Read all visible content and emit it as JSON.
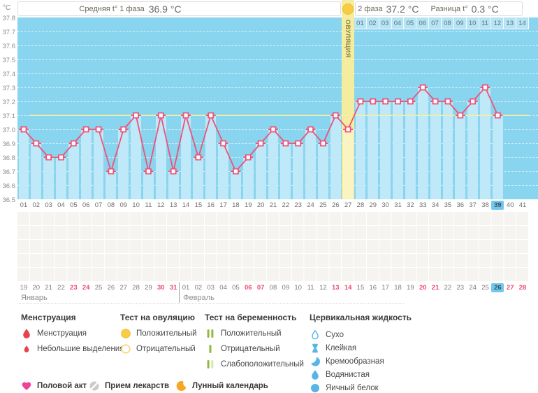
{
  "header": {
    "unit": "°C",
    "phase1_label": "Средняя t° 1 фаза",
    "phase1_value": "36.9 °C",
    "phase2_label": "2 фаза",
    "phase2_value": "37.2 °C",
    "diff_label": "Разница t°",
    "diff_value": "0.3 °C",
    "ovulation_icon": "positive-ovulation-test"
  },
  "chart_data": {
    "type": "line",
    "ylabel": "°C",
    "ylim": [
      36.5,
      37.8
    ],
    "ytick_step": 0.1,
    "cycle_length_days": 41,
    "temperatures_by_day": [
      37.0,
      36.9,
      36.8,
      36.8,
      36.9,
      37.0,
      37.0,
      36.7,
      37.0,
      37.1,
      36.7,
      37.1,
      36.7,
      37.1,
      36.8,
      37.1,
      36.9,
      36.7,
      36.8,
      36.9,
      37.0,
      36.9,
      36.9,
      37.0,
      36.9,
      37.1,
      37.0,
      37.2,
      37.2,
      37.2,
      37.2,
      37.2,
      37.3,
      37.2,
      37.2,
      37.1,
      37.2,
      37.3,
      37.1,
      null,
      null
    ],
    "coverline_temp": 37.1,
    "ovulation_day": 27,
    "ovulation_band_label": "ОВУЛЯЦИЯ",
    "current_cycle_day": 39,
    "phase2_day_labels": [
      "01",
      "02",
      "03",
      "04",
      "05",
      "06",
      "07",
      "08",
      "09",
      "10",
      "11",
      "12",
      "13",
      "14"
    ],
    "grid": "dashed-horizontal"
  },
  "dates_row": {
    "months": [
      {
        "label": "Январь",
        "start_date": 19,
        "end_date": 31,
        "weekend_dates": [
          23,
          24,
          30,
          31
        ]
      },
      {
        "label": "Февраль",
        "start_date": 1,
        "end_date": 28,
        "weekend_dates": [
          6,
          7,
          13,
          14,
          20,
          21,
          27,
          28
        ],
        "current_date": 26
      }
    ]
  },
  "legend": {
    "sections": [
      {
        "title": "Менструация",
        "items": [
          {
            "icon": "menstruation-drop",
            "label": "Менструация"
          },
          {
            "icon": "spotting-drop",
            "label": "Небольшие выделения"
          }
        ]
      },
      {
        "title": "Тест на овуляцию",
        "items": [
          {
            "icon": "ovulation-positive",
            "label": "Положительный"
          },
          {
            "icon": "ovulation-negative",
            "label": "Отрицательный"
          }
        ]
      },
      {
        "title": "Тест на беременность",
        "items": [
          {
            "icon": "pregnancy-positive",
            "label": "Положительный"
          },
          {
            "icon": "pregnancy-negative",
            "label": "Отрицательный"
          },
          {
            "icon": "pregnancy-weak",
            "label": "Слабоположительный"
          }
        ]
      },
      {
        "title": "Цервикальная жидкость",
        "items": [
          {
            "icon": "fluid-dry",
            "label": "Сухо"
          },
          {
            "icon": "fluid-sticky",
            "label": "Клейкая"
          },
          {
            "icon": "fluid-creamy",
            "label": "Кремообразная"
          },
          {
            "icon": "fluid-watery",
            "label": "Водянистая"
          },
          {
            "icon": "fluid-eggwhite",
            "label": "Яичный белок"
          }
        ]
      }
    ],
    "actions": [
      {
        "icon": "intercourse-heart",
        "label": "Половой акт"
      },
      {
        "icon": "medication-pill",
        "label": "Прием лекарств"
      },
      {
        "icon": "moon-calendar",
        "label": "Лунный календарь"
      }
    ]
  },
  "colors": {
    "chart_bg": "#89d4ee",
    "bar": "#bfe9f8",
    "line": "#ed5377",
    "coverline": "#f1f0a2",
    "ovulation_band": "#f4eda0",
    "ovulation_bar": "#faf3c2",
    "current_day_highlight": "#70c8ef",
    "weekend_text": "#ee4a72",
    "yellow_icon": "#f8cd44",
    "green_icon": "#8cbb3e",
    "green_icon_faint": "#d7e7b0",
    "blue_icon": "#58b6e6",
    "red_icon": "#e8434a",
    "heart_icon": "#f2419b",
    "pill_icon": "#cbcbcb",
    "moon_icon": "#f7a823"
  }
}
